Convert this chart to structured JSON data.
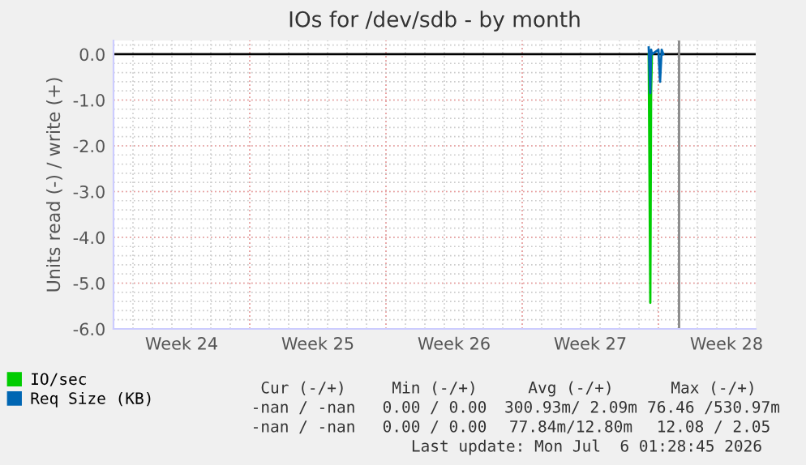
{
  "chart_data": {
    "type": "line",
    "title": "IOs for /dev/sdb - by month",
    "ylabel": "Units read (-) / write (+)",
    "xlim": [
      "2026-06-07",
      "2026-07-10"
    ],
    "xticks": [
      {
        "value": "2026-06-10T12:00",
        "label": "Week 24"
      },
      {
        "value": "2026-06-17T12:00",
        "label": "Week 25"
      },
      {
        "value": "2026-06-24T12:00",
        "label": "Week 26"
      },
      {
        "value": "2026-07-01T12:00",
        "label": "Week 27"
      },
      {
        "value": "2026-07-08T12:00",
        "label": "Week 28"
      }
    ],
    "ylim": [
      -6,
      0.3
    ],
    "yticks": [
      {
        "value": 0,
        "label": "0.0"
      },
      {
        "value": -1,
        "label": "-1.0"
      },
      {
        "value": -2,
        "label": "-2.0"
      },
      {
        "value": -3,
        "label": "-3.0"
      },
      {
        "value": -4,
        "label": "-4.0"
      },
      {
        "value": -5,
        "label": "-5.0"
      },
      {
        "value": -6,
        "label": "-6.0"
      }
    ],
    "grid": true,
    "legend": "bottom",
    "series": [
      {
        "name": "IO/sec",
        "color": "#00cc00",
        "x": [
          "2026-07-04T12:00",
          "2026-07-04T14:00",
          "2026-07-04T15:00",
          "2026-07-04T16:00"
        ],
        "values": [
          0,
          -5.43,
          -0.8,
          0
        ]
      },
      {
        "name": "Req Size (KB)",
        "color": "#0066b3",
        "x": [
          "2026-07-04T12:00",
          "2026-07-04T14:00",
          "2026-07-04T15:00",
          "2026-07-04T16:00",
          "2026-07-05T00:00",
          "2026-07-05T02:00",
          "2026-07-05T04:00",
          "2026-07-05T06:00"
        ],
        "values": [
          0.15,
          -0.85,
          0.1,
          0,
          0.1,
          -0.6,
          0.1,
          0
        ]
      }
    ],
    "ref_lines": [
      {
        "axis": "y",
        "value": 0,
        "color": "#000000"
      },
      {
        "axis": "x",
        "value": "2026-07-06T01:28",
        "color": "#888888"
      }
    ],
    "annotations": [
      "Cur (-/+)",
      "Min (-/+)",
      "Avg (-/+)",
      "Max (-/+)",
      "-nan / -nan",
      "0.00 / 0.00",
      "300.93m/ 2.09m",
      "76.46 /530.97m",
      "-nan / -nan",
      "0.00 / 0.00",
      "77.84m/12.80m",
      "12.08 / 2.05",
      "Last update: Mon Jul  6 01:28:45 2026"
    ]
  }
}
